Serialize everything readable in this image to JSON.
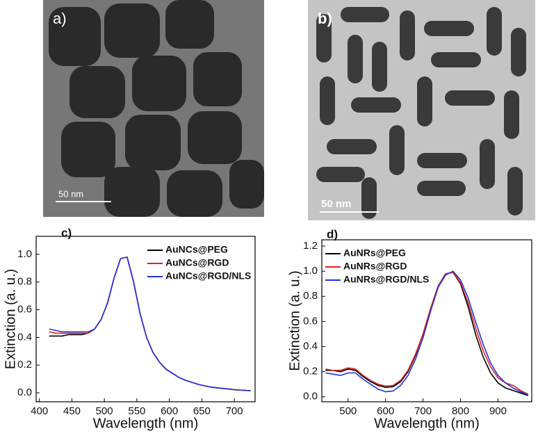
{
  "images": [
    {
      "label": "a)",
      "scale_bar": "50 nm"
    },
    {
      "label": "b)",
      "scale_bar": "50 nm"
    }
  ],
  "chart_data": [
    {
      "type": "line",
      "label": "c)",
      "x_label": "Wavelength (nm)",
      "y_label": "Extinction (a. u.)",
      "legend": "upper right",
      "x": [
        415,
        425,
        435,
        445,
        455,
        465,
        475,
        485,
        495,
        505,
        515,
        525,
        535,
        545,
        555,
        565,
        575,
        585,
        595,
        605,
        615,
        625,
        635,
        645,
        655,
        665,
        675,
        685,
        695,
        705,
        715,
        725
      ],
      "series": [
        {
          "name": "AuNCs@PEG",
          "color": "#000000",
          "values": [
            0.41,
            0.41,
            0.41,
            0.42,
            0.42,
            0.42,
            0.43,
            0.46,
            0.53,
            0.65,
            0.83,
            0.97,
            0.98,
            0.8,
            0.57,
            0.4,
            0.29,
            0.22,
            0.17,
            0.14,
            0.11,
            0.09,
            0.075,
            0.06,
            0.05,
            0.04,
            0.035,
            0.03,
            0.025,
            0.02,
            0.018,
            0.015
          ]
        },
        {
          "name": "AuNCs@RGD",
          "color": "#e02020",
          "values": [
            0.44,
            0.43,
            0.43,
            0.43,
            0.43,
            0.43,
            0.43,
            0.46,
            0.53,
            0.65,
            0.83,
            0.97,
            0.98,
            0.8,
            0.57,
            0.4,
            0.29,
            0.22,
            0.17,
            0.14,
            0.11,
            0.09,
            0.075,
            0.06,
            0.05,
            0.04,
            0.035,
            0.03,
            0.025,
            0.02,
            0.018,
            0.015
          ]
        },
        {
          "name": "AuNCs@RGD/NLS",
          "color": "#2030e0",
          "values": [
            0.46,
            0.45,
            0.44,
            0.44,
            0.44,
            0.44,
            0.44,
            0.46,
            0.53,
            0.65,
            0.83,
            0.97,
            0.98,
            0.8,
            0.57,
            0.4,
            0.29,
            0.22,
            0.17,
            0.14,
            0.11,
            0.09,
            0.075,
            0.06,
            0.05,
            0.04,
            0.035,
            0.03,
            0.025,
            0.02,
            0.018,
            0.015
          ]
        }
      ],
      "xlim": [
        395,
        732
      ],
      "xticks": [
        400,
        450,
        500,
        550,
        600,
        650,
        700
      ],
      "ylim": [
        -0.065,
        1.13
      ],
      "yticks": [
        {
          "value": 0,
          "label": "0.0"
        },
        0.2,
        0.4,
        0.6,
        0.8,
        {
          "value": 1,
          "label": "1.0"
        }
      ]
    },
    {
      "type": "line",
      "label": "d)",
      "x_label": "Wavelength (nm)",
      "y_label": "Extinction (a. u.)",
      "legend": "upper left",
      "x": [
        440,
        460,
        480,
        500,
        520,
        540,
        560,
        580,
        600,
        620,
        640,
        660,
        680,
        700,
        720,
        740,
        760,
        780,
        800,
        820,
        840,
        860,
        880,
        900,
        920,
        940,
        960,
        980
      ],
      "series": [
        {
          "name": "AuNRs@PEG",
          "color": "#000000",
          "values": [
            0.21,
            0.21,
            0.2,
            0.22,
            0.21,
            0.16,
            0.12,
            0.09,
            0.075,
            0.08,
            0.12,
            0.2,
            0.33,
            0.5,
            0.7,
            0.88,
            0.98,
            0.99,
            0.9,
            0.72,
            0.5,
            0.32,
            0.19,
            0.11,
            0.07,
            0.05,
            0.03,
            0.01
          ]
        },
        {
          "name": "AuNRs@RGD",
          "color": "#e02020",
          "values": [
            0.22,
            0.21,
            0.21,
            0.23,
            0.22,
            0.17,
            0.13,
            0.1,
            0.085,
            0.09,
            0.13,
            0.21,
            0.34,
            0.5,
            0.7,
            0.88,
            0.98,
            0.99,
            0.91,
            0.75,
            0.55,
            0.37,
            0.24,
            0.15,
            0.11,
            0.09,
            0.05,
            0.02
          ]
        },
        {
          "name": "AuNRs@RGD/NLS",
          "color": "#2030e0",
          "values": [
            0.19,
            0.18,
            0.17,
            0.19,
            0.19,
            0.14,
            0.1,
            0.06,
            0.04,
            0.045,
            0.09,
            0.17,
            0.3,
            0.47,
            0.68,
            0.87,
            0.97,
            1,
            0.93,
            0.79,
            0.6,
            0.42,
            0.27,
            0.17,
            0.11,
            0.07,
            0.04,
            0.02
          ]
        }
      ],
      "xlim": [
        430,
        990
      ],
      "xticks": [
        500,
        600,
        700,
        800,
        900
      ],
      "ylim": [
        -0.04,
        1.25
      ],
      "yticks": [
        {
          "value": 0,
          "label": "0.0"
        },
        0.2,
        0.4,
        0.6,
        0.8,
        {
          "value": 1,
          "label": "1.0"
        },
        1.2
      ]
    }
  ]
}
